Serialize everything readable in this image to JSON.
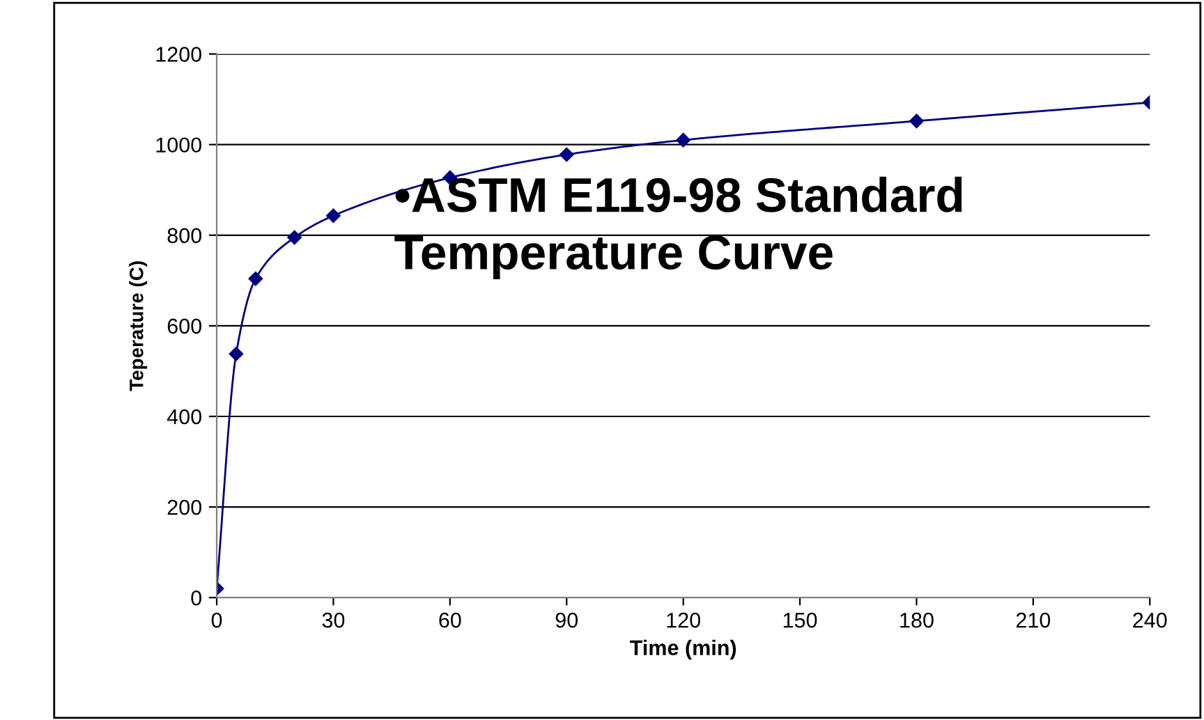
{
  "chart_data": {
    "type": "line",
    "xlabel": "Time (min)",
    "ylabel": "Teperature (C)",
    "annotations": [
      "•ASTM E119-98 Standard Temperature Curve"
    ],
    "x": [
      0,
      5,
      10,
      20,
      30,
      60,
      90,
      120,
      180,
      240
    ],
    "series": [
      {
        "color": "#000080",
        "values": [
          20,
          538,
          704,
          795,
          843,
          927,
          978,
          1010,
          1052,
          1093
        ]
      }
    ],
    "xlim": [
      0,
      240
    ],
    "xticks": [
      0,
      30,
      60,
      90,
      120,
      150,
      180,
      210,
      240
    ],
    "ylim": [
      0,
      1200
    ],
    "yticks": [
      0,
      200,
      400,
      600,
      800,
      1000,
      1200
    ],
    "grid": "y",
    "marker": "diamond",
    "line_style": "solid"
  }
}
